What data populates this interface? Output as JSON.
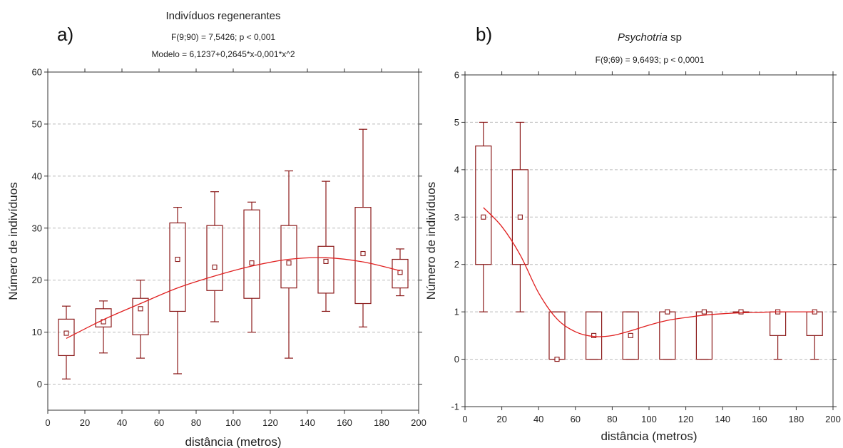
{
  "panel_a": {
    "label": "a)",
    "title": "Indivíduos regenerantes",
    "stat_line": "F(9;90) = 7,5426; p < 0,001",
    "model_line": "Modelo = 6,1237+0,2645*x-0,001*x^2"
  },
  "panel_b": {
    "label": "b)",
    "title_italic": "Psychotria",
    "title_rest": " sp",
    "stat_line": "F(9;69) = 9,6493; p < 0,0001"
  },
  "chart_data": [
    {
      "type": "box",
      "title": "Indivíduos regenerantes",
      "xlabel": "distância (metros)",
      "ylabel": "Número de indivíduos",
      "xlim": [
        0,
        200
      ],
      "ylim": [
        -5,
        60
      ],
      "xticks": [
        0,
        20,
        40,
        60,
        80,
        100,
        120,
        140,
        160,
        180,
        200
      ],
      "yticks": [
        0,
        10,
        20,
        30,
        40,
        50,
        60
      ],
      "grid": "horizontal dashed",
      "colors": {
        "box": "#8b1a1a",
        "curve": "#e02020",
        "grid": "#bbbbbb"
      },
      "boxes": [
        {
          "x": 10,
          "min": 1,
          "q1": 5.5,
          "q3": 12.5,
          "max": 15,
          "median": 9.8
        },
        {
          "x": 30,
          "min": 6,
          "q1": 11,
          "q3": 14.5,
          "max": 16,
          "median": 12
        },
        {
          "x": 50,
          "min": 5,
          "q1": 9.5,
          "q3": 16.5,
          "max": 20,
          "median": 14.5
        },
        {
          "x": 70,
          "min": 2,
          "q1": 14,
          "q3": 31,
          "max": 34,
          "median": 24
        },
        {
          "x": 90,
          "min": 12,
          "q1": 18,
          "q3": 30.5,
          "max": 37,
          "median": 22.5
        },
        {
          "x": 110,
          "min": 10,
          "q1": 16.5,
          "q3": 33.5,
          "max": 35,
          "median": 23.3
        },
        {
          "x": 130,
          "min": 5,
          "q1": 18.5,
          "q3": 30.5,
          "max": 41,
          "median": 23.3
        },
        {
          "x": 150,
          "min": 14,
          "q1": 17.5,
          "q3": 26.5,
          "max": 39,
          "median": 23.6
        },
        {
          "x": 170,
          "min": 11,
          "q1": 15.5,
          "q3": 34,
          "max": 49,
          "median": 25.1
        },
        {
          "x": 190,
          "min": 17,
          "q1": 18.5,
          "q3": 24,
          "max": 26,
          "median": 21.5
        }
      ],
      "curve": {
        "x": [
          10,
          30,
          50,
          70,
          90,
          110,
          130,
          150,
          170,
          190
        ],
        "y": [
          8.8,
          12.4,
          15.5,
          18.5,
          20.8,
          22.7,
          24.0,
          24.3,
          23.5,
          21.8
        ]
      }
    },
    {
      "type": "box",
      "title": "Psychotria sp",
      "xlabel": "distância (metros)",
      "ylabel": "Número de indivíduos",
      "xlim": [
        0,
        200
      ],
      "ylim": [
        -1,
        6
      ],
      "xticks": [
        0,
        20,
        40,
        60,
        80,
        100,
        120,
        140,
        160,
        180,
        200
      ],
      "yticks": [
        -1,
        0,
        1,
        2,
        3,
        4,
        5,
        6
      ],
      "grid": "horizontal dashed",
      "colors": {
        "box": "#8b1a1a",
        "curve": "#e02020",
        "grid": "#bbbbbb"
      },
      "boxes": [
        {
          "x": 10,
          "min": 1,
          "q1": 2,
          "q3": 4.5,
          "max": 5,
          "median": 3
        },
        {
          "x": 30,
          "min": 1,
          "q1": 2,
          "q3": 4,
          "max": 5,
          "median": 3
        },
        {
          "x": 50,
          "min": 0,
          "q1": 0,
          "q3": 1,
          "max": 1,
          "median": 0
        },
        {
          "x": 70,
          "min": 0,
          "q1": 0,
          "q3": 1,
          "max": 1,
          "median": 0.5
        },
        {
          "x": 90,
          "min": 0,
          "q1": 0,
          "q3": 1,
          "max": 1,
          "median": 0.5
        },
        {
          "x": 110,
          "min": 0,
          "q1": 0,
          "q3": 1,
          "max": 1,
          "median": 1
        },
        {
          "x": 130,
          "min": 0,
          "q1": 0,
          "q3": 1,
          "max": 1,
          "median": 1
        },
        {
          "x": 150,
          "min": 1,
          "q1": 1,
          "q3": 1,
          "max": 1,
          "median": 1
        },
        {
          "x": 170,
          "min": 0,
          "q1": 0.5,
          "q3": 1,
          "max": 1,
          "median": 1
        },
        {
          "x": 190,
          "min": 0,
          "q1": 0.5,
          "q3": 1,
          "max": 1,
          "median": 1
        }
      ],
      "curve": {
        "x": [
          10,
          20,
          30,
          40,
          50,
          60,
          70,
          80,
          90,
          100,
          110,
          120,
          130,
          140,
          150,
          160,
          170,
          180,
          190
        ],
        "y": [
          3.2,
          2.8,
          2.2,
          1.4,
          0.85,
          0.58,
          0.48,
          0.5,
          0.6,
          0.72,
          0.82,
          0.88,
          0.93,
          0.96,
          0.98,
          0.99,
          1.0,
          1.0,
          1.0
        ]
      }
    }
  ]
}
